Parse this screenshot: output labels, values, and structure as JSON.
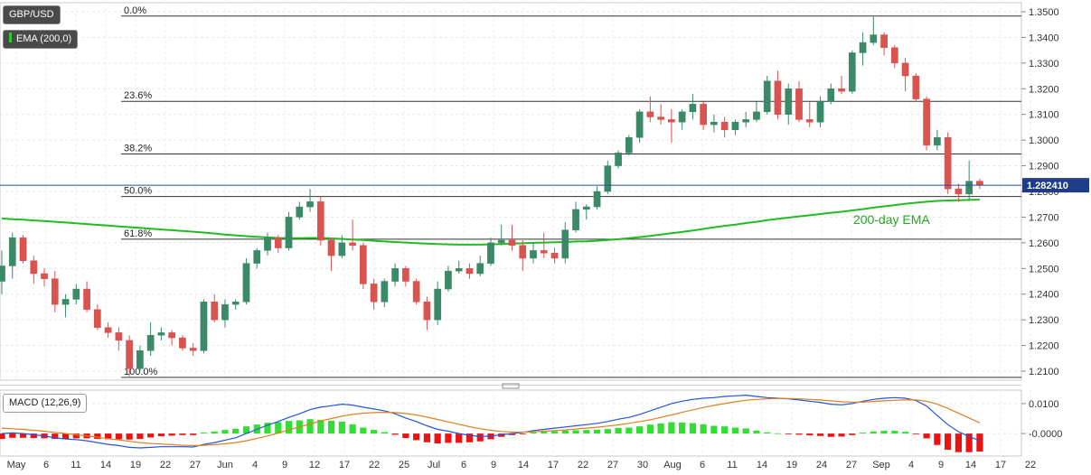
{
  "chart_data": {
    "type": "candlestick",
    "symbol": "GBP/USD",
    "indicator_label": "EMA (200,0)",
    "last_price": "1.282410",
    "ema_annotation": "200-day EMA",
    "x_tick_labels": [
      "May",
      "6",
      "11",
      "14",
      "19",
      "22",
      "27",
      "Jun",
      "4",
      "9",
      "12",
      "17",
      "22",
      "25",
      "Jul",
      "6",
      "9",
      "14",
      "17",
      "22",
      "27",
      "30",
      "Aug",
      "6",
      "11",
      "14",
      "19",
      "24",
      "27",
      "Sep",
      "4",
      "9",
      "14",
      "17",
      "22"
    ],
    "y_tick_labels": [
      "1.3500",
      "1.3400",
      "1.3300",
      "1.3200",
      "1.3100",
      "1.3000",
      "1.2900",
      "1.2800",
      "1.2700",
      "1.2600",
      "1.2500",
      "1.2400",
      "1.2300",
      "1.2200",
      "1.2100"
    ],
    "ylim": [
      1.2065,
      1.3535
    ],
    "fib_levels": [
      {
        "label": "0.0%",
        "value": 1.3483
      },
      {
        "label": "23.6%",
        "value": 1.3151
      },
      {
        "label": "38.2%",
        "value": 1.2946
      },
      {
        "label": "50.0%",
        "value": 1.278
      },
      {
        "label": "61.8%",
        "value": 1.2614
      },
      {
        "label": "100.0%",
        "value": 1.2076
      }
    ],
    "candles": [
      [
        1.245,
        1.257,
        1.24,
        1.251
      ],
      [
        1.251,
        1.264,
        1.246,
        1.262
      ],
      [
        1.262,
        1.263,
        1.252,
        1.253
      ],
      [
        1.253,
        1.255,
        1.244,
        1.248
      ],
      [
        1.248,
        1.25,
        1.243,
        1.246
      ],
      [
        1.246,
        1.249,
        1.233,
        1.236
      ],
      [
        1.236,
        1.24,
        1.231,
        1.238
      ],
      [
        1.238,
        1.244,
        1.236,
        1.242
      ],
      [
        1.242,
        1.245,
        1.233,
        1.234
      ],
      [
        1.234,
        1.236,
        1.226,
        1.227
      ],
      [
        1.227,
        1.229,
        1.223,
        1.225
      ],
      [
        1.225,
        1.227,
        1.218,
        1.222
      ],
      [
        1.222,
        1.224,
        1.208,
        1.211
      ],
      [
        1.211,
        1.22,
        1.21,
        1.218
      ],
      [
        1.218,
        1.229,
        1.216,
        1.224
      ],
      [
        1.224,
        1.227,
        1.222,
        1.225
      ],
      [
        1.225,
        1.226,
        1.22,
        1.223
      ],
      [
        1.223,
        1.224,
        1.218,
        1.219
      ],
      [
        1.219,
        1.221,
        1.216,
        1.218
      ],
      [
        1.218,
        1.238,
        1.217,
        1.237
      ],
      [
        1.237,
        1.24,
        1.229,
        1.23
      ],
      [
        1.23,
        1.238,
        1.227,
        1.236
      ],
      [
        1.236,
        1.238,
        1.234,
        1.237
      ],
      [
        1.237,
        1.254,
        1.236,
        1.252
      ],
      [
        1.252,
        1.258,
        1.25,
        1.257
      ],
      [
        1.257,
        1.264,
        1.255,
        1.262
      ],
      [
        1.262,
        1.263,
        1.256,
        1.258
      ],
      [
        1.258,
        1.272,
        1.257,
        1.27
      ],
      [
        1.27,
        1.276,
        1.269,
        1.274
      ],
      [
        1.274,
        1.281,
        1.272,
        1.276
      ],
      [
        1.276,
        1.278,
        1.259,
        1.261
      ],
      [
        1.261,
        1.262,
        1.249,
        1.255
      ],
      [
        1.255,
        1.263,
        1.254,
        1.26
      ],
      [
        1.26,
        1.269,
        1.257,
        1.259
      ],
      [
        1.259,
        1.26,
        1.242,
        1.244
      ],
      [
        1.244,
        1.246,
        1.234,
        1.237
      ],
      [
        1.237,
        1.246,
        1.235,
        1.245
      ],
      [
        1.245,
        1.252,
        1.243,
        1.25
      ],
      [
        1.25,
        1.251,
        1.243,
        1.245
      ],
      [
        1.245,
        1.246,
        1.236,
        1.237
      ],
      [
        1.237,
        1.239,
        1.226,
        1.23
      ],
      [
        1.23,
        1.245,
        1.228,
        1.242
      ],
      [
        1.242,
        1.251,
        1.241,
        1.249
      ],
      [
        1.249,
        1.253,
        1.248,
        1.25
      ],
      [
        1.25,
        1.252,
        1.246,
        1.248
      ],
      [
        1.248,
        1.255,
        1.247,
        1.252
      ],
      [
        1.252,
        1.262,
        1.251,
        1.26
      ],
      [
        1.26,
        1.267,
        1.259,
        1.261
      ],
      [
        1.261,
        1.267,
        1.257,
        1.259
      ],
      [
        1.259,
        1.261,
        1.249,
        1.254
      ],
      [
        1.254,
        1.26,
        1.252,
        1.257
      ],
      [
        1.257,
        1.264,
        1.254,
        1.256
      ],
      [
        1.256,
        1.258,
        1.252,
        1.254
      ],
      [
        1.254,
        1.268,
        1.252,
        1.265
      ],
      [
        1.265,
        1.276,
        1.264,
        1.273
      ],
      [
        1.273,
        1.275,
        1.269,
        1.274
      ],
      [
        1.274,
        1.282,
        1.273,
        1.28
      ],
      [
        1.28,
        1.292,
        1.279,
        1.29
      ],
      [
        1.29,
        1.296,
        1.289,
        1.295
      ],
      [
        1.295,
        1.302,
        1.294,
        1.301
      ],
      [
        1.301,
        1.312,
        1.299,
        1.311
      ],
      [
        1.311,
        1.317,
        1.307,
        1.309
      ],
      [
        1.309,
        1.314,
        1.306,
        1.308
      ],
      [
        1.308,
        1.312,
        1.299,
        1.307
      ],
      [
        1.307,
        1.312,
        1.304,
        1.311
      ],
      [
        1.311,
        1.318,
        1.308,
        1.314
      ],
      [
        1.314,
        1.315,
        1.304,
        1.306
      ],
      [
        1.306,
        1.31,
        1.303,
        1.307
      ],
      [
        1.307,
        1.309,
        1.301,
        1.304
      ],
      [
        1.304,
        1.308,
        1.302,
        1.307
      ],
      [
        1.307,
        1.311,
        1.305,
        1.308
      ],
      [
        1.308,
        1.315,
        1.307,
        1.311
      ],
      [
        1.311,
        1.325,
        1.31,
        1.323
      ],
      [
        1.323,
        1.327,
        1.308,
        1.31
      ],
      [
        1.31,
        1.322,
        1.306,
        1.32
      ],
      [
        1.32,
        1.323,
        1.307,
        1.308
      ],
      [
        1.308,
        1.315,
        1.305,
        1.307
      ],
      [
        1.307,
        1.317,
        1.305,
        1.315
      ],
      [
        1.315,
        1.322,
        1.314,
        1.32
      ],
      [
        1.32,
        1.325,
        1.318,
        1.319
      ],
      [
        1.319,
        1.335,
        1.318,
        1.334
      ],
      [
        1.334,
        1.342,
        1.329,
        1.338
      ],
      [
        1.338,
        1.348,
        1.337,
        1.341
      ],
      [
        1.341,
        1.342,
        1.333,
        1.336
      ],
      [
        1.336,
        1.337,
        1.328,
        1.33
      ],
      [
        1.33,
        1.332,
        1.319,
        1.325
      ],
      [
        1.325,
        1.326,
        1.315,
        1.316
      ],
      [
        1.316,
        1.317,
        1.296,
        1.298
      ],
      [
        1.298,
        1.304,
        1.296,
        1.301
      ],
      [
        1.301,
        1.303,
        1.279,
        1.281
      ],
      [
        1.281,
        1.283,
        1.276,
        1.279
      ],
      [
        1.279,
        1.292,
        1.277,
        1.284
      ],
      [
        1.284,
        1.285,
        1.281,
        1.2824
      ]
    ],
    "ema_200": [
      1.2695,
      1.2692,
      1.269,
      1.2687,
      1.2685,
      1.2682,
      1.2679,
      1.2676,
      1.2673,
      1.267,
      1.2667,
      1.2664,
      1.2661,
      1.2658,
      1.2655,
      1.2652,
      1.2649,
      1.2646,
      1.2643,
      1.264,
      1.2636,
      1.2632,
      1.2629,
      1.2626,
      1.2623,
      1.2621,
      1.2619,
      1.2618,
      1.2618,
      1.2619,
      1.2619,
      1.2617,
      1.2615,
      1.2613,
      1.2611,
      1.2608,
      1.2605,
      1.2603,
      1.2601,
      1.2599,
      1.2597,
      1.2595,
      1.2594,
      1.2593,
      1.2593,
      1.2593,
      1.2594,
      1.2595,
      1.2597,
      1.2598,
      1.26,
      1.2601,
      1.2602,
      1.2603,
      1.2605,
      1.2606,
      1.2608,
      1.2611,
      1.2614,
      1.2618,
      1.2622,
      1.2627,
      1.2632,
      1.2637,
      1.2642,
      1.2648,
      1.2654,
      1.266,
      1.2666,
      1.2671,
      1.2677,
      1.2682,
      1.2688,
      1.2693,
      1.2698,
      1.2703,
      1.2707,
      1.2712,
      1.2717,
      1.2721,
      1.2726,
      1.2731,
      1.2737,
      1.2742,
      1.2747,
      1.2752,
      1.2756,
      1.276,
      1.2763,
      1.2765,
      1.2766,
      1.2767,
      1.2768
    ],
    "macd": {
      "label": "MACD (12,26,9)",
      "y_tick_labels": [
        "0.0100",
        "-0.0000"
      ],
      "ylim": [
        -0.0075,
        0.0145
      ],
      "line": [
        0.0,
        0.0002,
        0.0,
        -0.0004,
        -0.0008,
        -0.0014,
        -0.0018,
        -0.002,
        -0.0024,
        -0.003,
        -0.0036,
        -0.004,
        -0.0046,
        -0.0048,
        -0.0046,
        -0.0044,
        -0.0044,
        -0.0044,
        -0.0045,
        -0.0036,
        -0.003,
        -0.0022,
        -0.0014,
        0.0,
        0.0014,
        0.0028,
        0.004,
        0.0054,
        0.0066,
        0.008,
        0.0088,
        0.0093,
        0.0098,
        0.0095,
        0.0088,
        0.0082,
        0.0076,
        0.0066,
        0.0052,
        0.004,
        0.0026,
        0.0014,
        0.0008,
        0.0,
        -0.0006,
        -0.001,
        -0.0008,
        -0.0004,
        0.0,
        0.0004,
        0.001,
        0.0014,
        0.0018,
        0.0022,
        0.0026,
        0.003,
        0.0034,
        0.004,
        0.0048,
        0.0054,
        0.0064,
        0.0076,
        0.0088,
        0.01,
        0.0108,
        0.0114,
        0.0118,
        0.012,
        0.0124,
        0.0126,
        0.0128,
        0.0124,
        0.012,
        0.0118,
        0.0116,
        0.0112,
        0.0108,
        0.0104,
        0.0098,
        0.0096,
        0.01,
        0.0108,
        0.0114,
        0.0118,
        0.012,
        0.0118,
        0.011,
        0.0092,
        0.006,
        0.003,
        0.0006,
        -0.001,
        -0.0024
      ],
      "signal": [
        0.0018,
        0.0016,
        0.0014,
        0.0011,
        0.0008,
        0.0004,
        0.0,
        -0.0004,
        -0.0008,
        -0.0012,
        -0.0017,
        -0.0021,
        -0.0026,
        -0.003,
        -0.0033,
        -0.0035,
        -0.0037,
        -0.0039,
        -0.004,
        -0.0039,
        -0.0037,
        -0.0034,
        -0.003,
        -0.0024,
        -0.0016,
        -0.0008,
        0.0002,
        0.0012,
        0.0022,
        0.0032,
        0.0042,
        0.005,
        0.0058,
        0.0064,
        0.0068,
        0.007,
        0.0071,
        0.007,
        0.0067,
        0.0062,
        0.0055,
        0.0047,
        0.0039,
        0.0031,
        0.0023,
        0.0016,
        0.0011,
        0.0007,
        0.0005,
        0.0005,
        0.0006,
        0.0008,
        0.001,
        0.0012,
        0.0015,
        0.0018,
        0.0021,
        0.0025,
        0.0029,
        0.0034,
        0.004,
        0.0046,
        0.0054,
        0.0062,
        0.0071,
        0.0079,
        0.0087,
        0.0094,
        0.01,
        0.0106,
        0.0111,
        0.0114,
        0.0116,
        0.0117,
        0.0117,
        0.0116,
        0.0114,
        0.0112,
        0.0109,
        0.0106,
        0.0105,
        0.0105,
        0.0107,
        0.0109,
        0.0111,
        0.0112,
        0.0112,
        0.0108,
        0.0098,
        0.0084,
        0.0068,
        0.0052,
        0.0036
      ]
    }
  }
}
